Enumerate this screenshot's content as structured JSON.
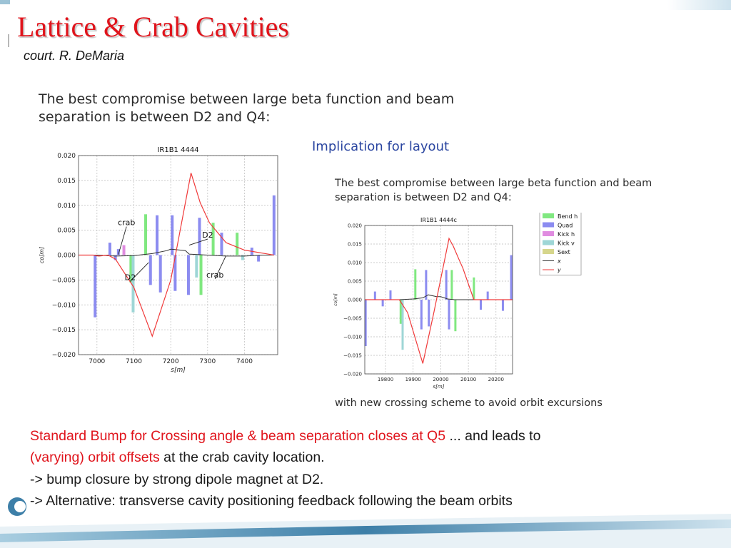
{
  "header": {
    "title": "Lattice & Crab Cavities",
    "subtitle": "court. R. DeMaria"
  },
  "left_panel": {
    "lead_text": "The best compromise between large beta function and beam separation is between D2 and Q4:"
  },
  "right_panel": {
    "heading": "Implication for layout",
    "lead_text": "The best compromise between large beta function and beam separation is between D2 and Q4:",
    "caption": "with new crossing scheme to avoid orbit excursions"
  },
  "bottom_text": {
    "line1_red": "Standard Bump for Crossing angle & beam separation closes at Q5",
    "line1_black": " ... and leads to",
    "line2_red": "(varying) orbit offsets",
    "line2_black": " at the crab cavity location.",
    "line3": "-> bump closure by strong dipole magnet at D2.",
    "line4": "-> Alternative: transverse cavity positioning feedback following the beam orbits"
  },
  "colors": {
    "title": "#e0141c",
    "quad": "#8c8cf0",
    "bend_h": "#80e880",
    "kick_h": "#e08ce0",
    "kick_v": "#9ed6d6",
    "sext": "#d6d68c",
    "x_line": "#333333",
    "y_line": "#f03a3a"
  },
  "chart_data": [
    {
      "type": "line",
      "title": "IR1B1 4444",
      "xlabel": "s[m]",
      "ylabel": "co[m]",
      "xlim": [
        6950,
        7490
      ],
      "ylim": [
        -0.02,
        0.02
      ],
      "grid": true,
      "x_ticks": [
        "7000",
        "7100",
        "7200",
        "7300",
        "7400"
      ],
      "y_ticks": [
        "0.020",
        "0.015",
        "0.010",
        "0.005",
        "0.000",
        "−0.005",
        "−0.010",
        "−0.015",
        "−0.020"
      ],
      "series": [
        {
          "key": "x",
          "points": [
            [
              6950,
              0
            ],
            [
              7000,
              0
            ],
            [
              7050,
              -0.0002
            ],
            [
              7100,
              -0.0001
            ],
            [
              7150,
              0.0003
            ],
            [
              7190,
              0.0009
            ],
            [
              7200,
              0.0012
            ],
            [
              7240,
              0.0009
            ],
            [
              7250,
              0.0002
            ],
            [
              7300,
              0
            ],
            [
              7350,
              -0.0002
            ],
            [
              7400,
              -0.0002
            ],
            [
              7450,
              0
            ],
            [
              7480,
              0
            ]
          ]
        },
        {
          "key": "y",
          "points": [
            [
              6950,
              0
            ],
            [
              6990,
              0
            ],
            [
              7005,
              -0.0002
            ],
            [
              7030,
              0
            ],
            [
              7050,
              -0.0008
            ],
            [
              7100,
              -0.0065
            ],
            [
              7150,
              -0.0163
            ],
            [
              7200,
              -0.005
            ],
            [
              7255,
              0.0165
            ],
            [
              7280,
              0.0105
            ],
            [
              7305,
              0.0065
            ],
            [
              7350,
              0.0025
            ],
            [
              7400,
              0.001
            ],
            [
              7480,
              0
            ]
          ]
        }
      ],
      "elements": [
        {
          "s": 6995,
          "value": -0.0125,
          "kind": "quad"
        },
        {
          "s": 7035,
          "value": 0.0025,
          "kind": "quad"
        },
        {
          "s": 7050,
          "value": -0.001,
          "kind": "quad"
        },
        {
          "s": 7058,
          "value": 0.0012,
          "kind": "quad"
        },
        {
          "s": 7073,
          "value": 0.002,
          "kind": "kick_h"
        },
        {
          "s": 7092,
          "value": -0.0055,
          "kind": "bend_h"
        },
        {
          "s": 7098,
          "value": -0.0115,
          "kind": "kick_v"
        },
        {
          "s": 7132,
          "value": 0.0082,
          "kind": "bend_h"
        },
        {
          "s": 7145,
          "value": -0.006,
          "kind": "quad"
        },
        {
          "s": 7163,
          "value": 0.008,
          "kind": "quad"
        },
        {
          "s": 7172,
          "value": -0.0075,
          "kind": "quad"
        },
        {
          "s": 7204,
          "value": 0.008,
          "kind": "quad"
        },
        {
          "s": 7212,
          "value": -0.0072,
          "kind": "quad"
        },
        {
          "s": 7248,
          "value": -0.008,
          "kind": "quad"
        },
        {
          "s": 7270,
          "value": -0.0045,
          "kind": "kick_v"
        },
        {
          "s": 7278,
          "value": 0.0075,
          "kind": "quad"
        },
        {
          "s": 7282,
          "value": -0.008,
          "kind": "bend_h"
        },
        {
          "s": 7315,
          "value": 0.0065,
          "kind": "bend_h"
        },
        {
          "s": 7338,
          "value": 0.0045,
          "kind": "quad"
        },
        {
          "s": 7380,
          "value": 0.0045,
          "kind": "bend_h"
        },
        {
          "s": 7395,
          "value": -0.001,
          "kind": "kick_v"
        },
        {
          "s": 7420,
          "value": 0.0015,
          "kind": "quad"
        },
        {
          "s": 7438,
          "value": -0.0013,
          "kind": "quad"
        },
        {
          "s": 7480,
          "value": 0.012,
          "kind": "quad"
        }
      ],
      "annotations": [
        {
          "text": "crab",
          "x": 7080,
          "y": 0.006,
          "tx": 7058,
          "ty": 0.0001
        },
        {
          "text": "D2",
          "x": 7300,
          "y": 0.0035,
          "tx": 7250,
          "ty": 0.002
        },
        {
          "text": "D2",
          "x": 7090,
          "y": -0.005,
          "tx": 7140,
          "ty": -0.0015
        },
        {
          "text": "crab",
          "x": 7320,
          "y": -0.0045,
          "tx": 7350,
          "ty": -0.0001
        }
      ]
    },
    {
      "type": "line",
      "title": "IR1B1 4444c",
      "xlabel": "s[m]",
      "ylabel": "co[m]",
      "xlim": [
        19725,
        20260
      ],
      "ylim": [
        -0.02,
        0.02
      ],
      "grid": true,
      "x_ticks": [
        "19800",
        "19900",
        "20000",
        "20100",
        "20200"
      ],
      "y_ticks": [
        "0.020",
        "0.015",
        "0.010",
        "0.005",
        "0.000",
        "−0.005",
        "−0.010",
        "−0.015",
        "−0.020"
      ],
      "legend": {
        "position": "right",
        "items": [
          {
            "label": "Bend h",
            "kind": "bend_h"
          },
          {
            "label": "Quad",
            "kind": "quad"
          },
          {
            "label": "Kick h",
            "kind": "kick_h"
          },
          {
            "label": "Kick v",
            "kind": "kick_v"
          },
          {
            "label": "Sext",
            "kind": "sext"
          },
          {
            "label": "x",
            "kind": "x_line"
          },
          {
            "label": "y",
            "kind": "y_line"
          }
        ]
      },
      "series": [
        {
          "key": "x",
          "points": [
            [
              19725,
              0
            ],
            [
              19850,
              0
            ],
            [
              19900,
              0.0002
            ],
            [
              19935,
              0.0005
            ],
            [
              19955,
              0.0013
            ],
            [
              19985,
              0.0008
            ],
            [
              20000,
              0.0008
            ],
            [
              20025,
              0.0002
            ],
            [
              20050,
              0
            ],
            [
              20260,
              0
            ]
          ]
        },
        {
          "key": "y",
          "points": [
            [
              19725,
              0
            ],
            [
              19850,
              0
            ],
            [
              19880,
              -0.0035
            ],
            [
              19935,
              -0.0172
            ],
            [
              19975,
              -0.0035
            ],
            [
              20030,
              0.0165
            ],
            [
              20045,
              0.0145
            ],
            [
              20065,
              0.011
            ],
            [
              20080,
              0.0085
            ],
            [
              20120,
              0
            ],
            [
              20260,
              0
            ]
          ]
        }
      ],
      "elements": [
        {
          "s": 19728,
          "value": -0.0125,
          "kind": "quad"
        },
        {
          "s": 19762,
          "value": 0.0022,
          "kind": "quad"
        },
        {
          "s": 19790,
          "value": -0.0018,
          "kind": "quad"
        },
        {
          "s": 19818,
          "value": 0.0025,
          "kind": "quad"
        },
        {
          "s": 19855,
          "value": -0.0065,
          "kind": "bend_h"
        },
        {
          "s": 19862,
          "value": -0.0135,
          "kind": "kick_v"
        },
        {
          "s": 19908,
          "value": 0.0082,
          "kind": "bend_h"
        },
        {
          "s": 19930,
          "value": -0.008,
          "kind": "quad"
        },
        {
          "s": 19947,
          "value": 0.008,
          "kind": "quad"
        },
        {
          "s": 19957,
          "value": -0.0072,
          "kind": "quad"
        },
        {
          "s": 20020,
          "value": 0.008,
          "kind": "quad"
        },
        {
          "s": 20030,
          "value": -0.008,
          "kind": "quad"
        },
        {
          "s": 20040,
          "value": 0.008,
          "kind": "bend_h"
        },
        {
          "s": 20053,
          "value": -0.0085,
          "kind": "bend_h"
        },
        {
          "s": 20120,
          "value": 0.006,
          "kind": "bend_h"
        },
        {
          "s": 20145,
          "value": -0.0027,
          "kind": "quad"
        },
        {
          "s": 20170,
          "value": 0.0022,
          "kind": "quad"
        },
        {
          "s": 20225,
          "value": -0.003,
          "kind": "quad"
        },
        {
          "s": 20255,
          "value": 0.012,
          "kind": "quad"
        }
      ]
    }
  ]
}
